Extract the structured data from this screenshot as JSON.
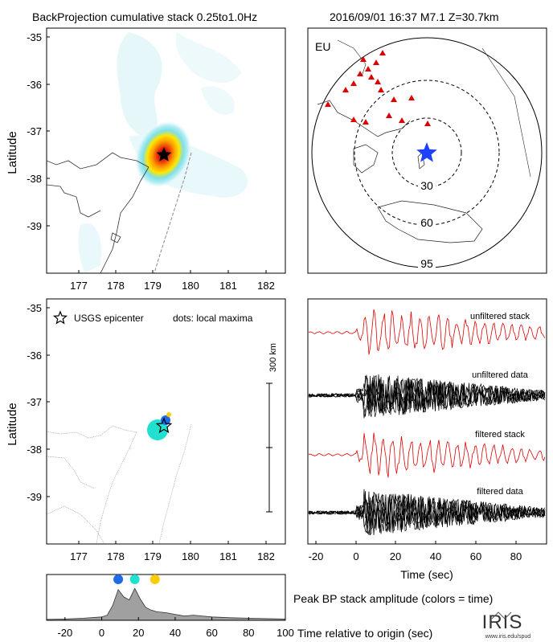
{
  "header": {
    "left": "BackProjection cumulative stack 0.25to1.0Hz",
    "right": "2016/09/01 16:37   M7.1   Z=30.7km"
  },
  "colors": {
    "hot_core": "#8b0000",
    "triangle": "#e00000",
    "star_blue": "#1e40ff",
    "stack_red": "#e00000",
    "dot_blue": "#1f6ae6",
    "dot_cyan": "#22e0d0",
    "dot_yellow": "#ffcc00",
    "shade": "#a0a0a0",
    "coast": "#555555"
  },
  "map_axes": {
    "ylabel": "Latitude",
    "lat_ticks": [
      "-35",
      "-36",
      "-37",
      "-38",
      "-39"
    ],
    "lon_ticks": [
      "177",
      "178",
      "179",
      "180",
      "181",
      "182"
    ]
  },
  "globe": {
    "label": "EU",
    "ring_labels": [
      "30",
      "60",
      "95"
    ]
  },
  "lower_map": {
    "legend_epicenter": "USGS epicenter",
    "legend_dots": "dots: local maxima",
    "scale_label": "300 km"
  },
  "traces": {
    "labels": [
      "unfiltered stack",
      "unfiltered data",
      "filtered stack",
      "filtered data"
    ],
    "x_ticks": [
      "-20",
      "0",
      "20",
      "40",
      "60",
      "80"
    ],
    "xlabel": "Time (sec)"
  },
  "chart_data": {
    "type": "area",
    "x_ticks": [
      "-20",
      "0",
      "20",
      "40",
      "60",
      "80",
      "100"
    ],
    "xlim": [
      -30,
      100
    ],
    "x": [
      -30,
      -20,
      -10,
      0,
      3,
      6,
      9,
      12,
      15,
      18,
      21,
      24,
      27,
      30,
      35,
      40,
      45,
      50,
      60,
      70,
      80,
      90,
      100
    ],
    "y": [
      0.02,
      0.03,
      0.05,
      0.08,
      0.12,
      0.35,
      0.72,
      0.55,
      0.48,
      0.75,
      0.5,
      0.3,
      0.24,
      0.2,
      0.18,
      0.14,
      0.1,
      0.12,
      0.08,
      0.06,
      0.05,
      0.04,
      0.03
    ],
    "maxima": [
      {
        "x": 9,
        "color": "#1f6ae6"
      },
      {
        "x": 18,
        "color": "#22e0d0"
      },
      {
        "x": 29,
        "color": "#ffcc00"
      }
    ],
    "title": "Peak BP stack amplitude (colors = time)",
    "xlabel": "Time relative to origin (sec)"
  },
  "logo": {
    "name": "IRIS",
    "url": "www.iris.edu/spud"
  }
}
